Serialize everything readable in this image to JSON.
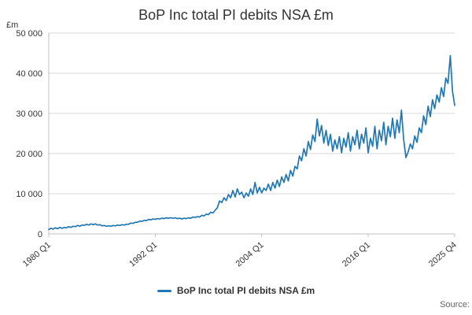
{
  "title": "BoP Inc total PI debits NSA £m",
  "y_axis_unit": "£m",
  "legend": {
    "label": "BoP Inc total PI debits NSA £m"
  },
  "source_label": "Source:",
  "colors": {
    "line": "#1f77b4",
    "grid": "#d8d8d8",
    "axis": "#c0c0c0",
    "text": "#333333",
    "source_text": "#666666"
  },
  "chart_data": {
    "type": "line",
    "title": "BoP Inc total PI debits NSA £m",
    "xlabel": "",
    "ylabel": "£m",
    "ylim": [
      0,
      50000
    ],
    "grid": "horizontal",
    "legend_position": "bottom",
    "x_frequency": "quarterly",
    "x_start": "1980 Q1",
    "x_end": "2025 Q4",
    "yticks": [
      {
        "value": 0,
        "label": "0"
      },
      {
        "value": 10000,
        "label": "10 000"
      },
      {
        "value": 20000,
        "label": "20 000"
      },
      {
        "value": 30000,
        "label": "30 000"
      },
      {
        "value": 40000,
        "label": "40 000"
      },
      {
        "value": 50000,
        "label": "50 000"
      }
    ],
    "xticks": [
      {
        "index": 0,
        "label": "1980 Q1"
      },
      {
        "index": 48,
        "label": "1992 Q1"
      },
      {
        "index": 96,
        "label": "2004 Q1"
      },
      {
        "index": 144,
        "label": "2016 Q1"
      },
      {
        "index": 183,
        "label": "2025 Q4"
      }
    ],
    "values": [
      1100,
      1400,
      1200,
      1500,
      1300,
      1600,
      1400,
      1600,
      1500,
      1800,
      1600,
      1900,
      1800,
      2100,
      1900,
      2200,
      2100,
      2400,
      2200,
      2500,
      2300,
      2500,
      2200,
      2300,
      2000,
      2100,
      1900,
      2000,
      1900,
      2100,
      2000,
      2200,
      2100,
      2300,
      2200,
      2400,
      2400,
      2700,
      2600,
      2900,
      2900,
      3200,
      3100,
      3400,
      3300,
      3600,
      3500,
      3700,
      3600,
      3800,
      3700,
      3900,
      3800,
      4000,
      3900,
      4000,
      3900,
      4000,
      3800,
      3900,
      3700,
      3900,
      3800,
      4000,
      3900,
      4200,
      4100,
      4300,
      4200,
      4600,
      4500,
      4900,
      4800,
      5400,
      5200,
      5900,
      6500,
      8200,
      7800,
      9000,
      8300,
      9800,
      9000,
      10800,
      9200,
      11200,
      9800,
      10400,
      9000,
      10200,
      9400,
      11200,
      9800,
      12800,
      10200,
      11600,
      10200,
      11400,
      10800,
      12400,
      10800,
      12800,
      11400,
      13400,
      11800,
      14200,
      12800,
      14800,
      13200,
      15800,
      14400,
      16800,
      16200,
      19400,
      18200,
      21200,
      19400,
      23000,
      21000,
      24600,
      23000,
      28600,
      24400,
      27000,
      22600,
      25800,
      22000,
      24800,
      20600,
      23400,
      21200,
      24200,
      20200,
      23800,
      21600,
      25200,
      20600,
      24200,
      22200,
      25800,
      21200,
      24800,
      22600,
      26400,
      20200,
      23800,
      21800,
      26800,
      21200,
      25800,
      23200,
      27800,
      22200,
      26800,
      24200,
      28800,
      23800,
      28400,
      25200,
      30800,
      23600,
      19000,
      20400,
      22400,
      21200,
      24400,
      22800,
      26400,
      25200,
      29400,
      27200,
      31800,
      29200,
      33400,
      31200,
      34600,
      32800,
      36400,
      34200,
      38800,
      37500,
      44400,
      35500,
      32000
    ]
  }
}
